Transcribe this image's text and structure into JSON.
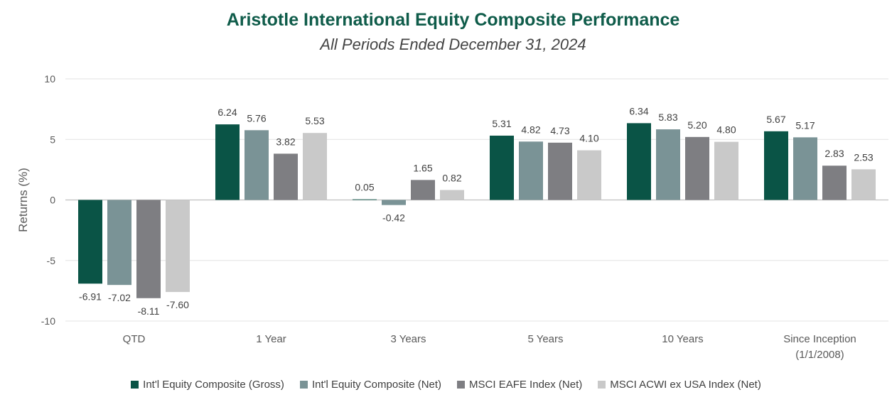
{
  "chart_data": {
    "type": "bar",
    "title": "Aristotle International Equity Composite Performance",
    "subtitle": "All Periods Ended December 31, 2024",
    "xlabel": "",
    "ylabel": "Returns (%)",
    "ylim": [
      -10,
      10
    ],
    "yticks": [
      10,
      5,
      0,
      -5,
      -10
    ],
    "grid": true,
    "legend_position": "bottom",
    "categories": [
      [
        "QTD"
      ],
      [
        "1 Year"
      ],
      [
        "3 Years"
      ],
      [
        "5 Years"
      ],
      [
        "10 Years"
      ],
      [
        "Since Inception",
        "(1/1/2008)"
      ]
    ],
    "series": [
      {
        "name": "Int'l Equity Composite (Gross)",
        "color": "#0a5446",
        "values": [
          -6.91,
          6.24,
          0.05,
          5.31,
          6.34,
          5.67
        ],
        "labels": [
          "-6.91",
          "6.24",
          "0.05",
          "5.31",
          "6.34",
          "5.67"
        ]
      },
      {
        "name": "Int'l Equity Composite (Net)",
        "color": "#7a9396",
        "values": [
          -7.02,
          5.76,
          -0.42,
          4.82,
          5.83,
          5.17
        ],
        "labels": [
          "-7.02",
          "5.76",
          "-0.42",
          "4.82",
          "5.83",
          "5.17"
        ]
      },
      {
        "name": "MSCI EAFE Index (Net)",
        "color": "#7e7e82",
        "values": [
          -8.11,
          3.82,
          1.65,
          4.73,
          5.2,
          2.83
        ],
        "labels": [
          "-8.11",
          "3.82",
          "1.65",
          "4.73",
          "5.20",
          "2.83"
        ]
      },
      {
        "name": "MSCI ACWI ex USA Index (Net)",
        "color": "#c9c9c9",
        "values": [
          -7.6,
          5.53,
          0.82,
          4.1,
          4.8,
          2.53
        ],
        "labels": [
          "-7.60",
          "5.53",
          "0.82",
          "4.10",
          "4.80",
          "2.53"
        ]
      }
    ]
  }
}
